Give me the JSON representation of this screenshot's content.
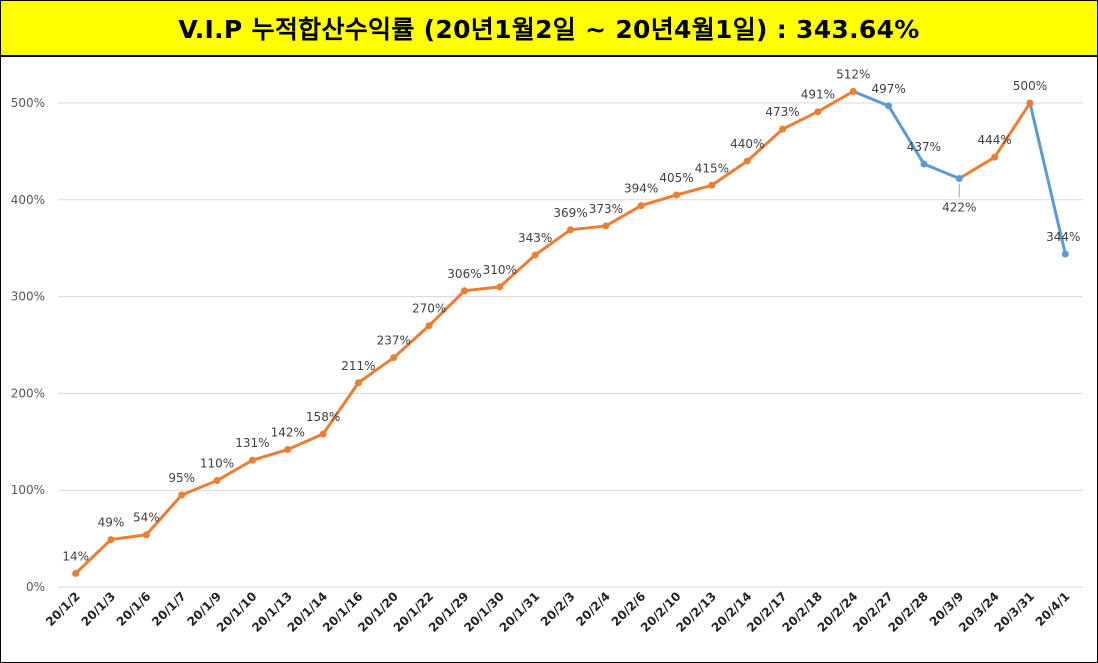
{
  "title": "V.I.P 누적합산수익률 (20년1월2일 ~ 20년4월1일) : 343.64%",
  "colors": {
    "title_bg": "#ffff00",
    "rising": "#ed7d31",
    "falling": "#5b9bd5",
    "grid": "#d9d9d9"
  },
  "chart_data": {
    "type": "line",
    "title": "V.I.P 누적합산수익률 (20년1월2일 ~ 20년4월1일) : 343.64%",
    "xlabel": "",
    "ylabel": "",
    "ylim": [
      0,
      550
    ],
    "yticks": [
      0,
      100,
      200,
      300,
      400,
      500
    ],
    "ytick_labels": [
      "0%",
      "100%",
      "200%",
      "300%",
      "400%",
      "500%"
    ],
    "grid": true,
    "legend": "none",
    "categories": [
      "20/1/2",
      "20/1/3",
      "20/1/6",
      "20/1/7",
      "20/1/9",
      "20/1/10",
      "20/1/13",
      "20/1/14",
      "20/1/16",
      "20/1/20",
      "20/1/22",
      "20/1/29",
      "20/1/30",
      "20/1/31",
      "20/2/3",
      "20/2/4",
      "20/2/6",
      "20/2/10",
      "20/2/13",
      "20/2/14",
      "20/2/17",
      "20/2/18",
      "20/2/24",
      "20/2/27",
      "20/2/28",
      "20/3/9",
      "20/3/24",
      "20/3/31",
      "20/4/1"
    ],
    "series": [
      {
        "values": [
          14,
          49,
          54,
          95,
          110,
          131,
          142,
          158,
          211,
          237,
          270,
          306,
          310,
          343,
          369,
          373,
          394,
          405,
          415,
          440,
          473,
          491,
          512,
          497,
          437,
          422,
          444,
          500,
          344
        ],
        "labels": [
          "14%",
          "49%",
          "54%",
          "95%",
          "110%",
          "131%",
          "142%",
          "158%",
          "211%",
          "237%",
          "270%",
          "306%",
          "310%",
          "343%",
          "369%",
          "373%",
          "394%",
          "405%",
          "415%",
          "440%",
          "473%",
          "491%",
          "512%",
          "497%",
          "437%",
          "422%",
          "444%",
          "500%",
          "344%"
        ]
      }
    ]
  }
}
